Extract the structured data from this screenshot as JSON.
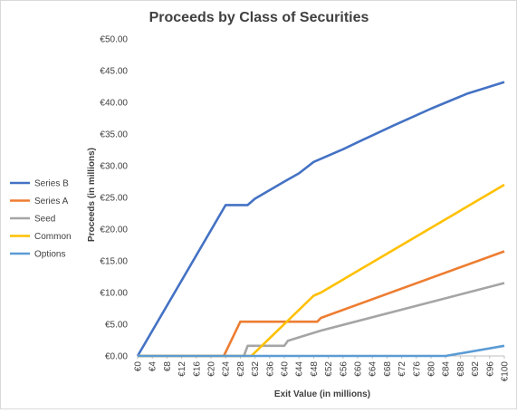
{
  "chart_data": {
    "type": "line",
    "title": "Proceeds by Class of Securities",
    "xlabel": "Exit Value (in millions)",
    "ylabel": "Proceeds (in millions)",
    "xlim": [
      0,
      100
    ],
    "ylim": [
      0,
      50
    ],
    "x_ticks": [
      0,
      4,
      8,
      12,
      16,
      20,
      24,
      28,
      32,
      36,
      40,
      44,
      48,
      52,
      56,
      60,
      64,
      68,
      72,
      76,
      80,
      84,
      88,
      92,
      96,
      100
    ],
    "x_tick_labels": [
      "€0",
      "€4",
      "€8",
      "€12",
      "€16",
      "€20",
      "€24",
      "€28",
      "€32",
      "€36",
      "€40",
      "€44",
      "€48",
      "€52",
      "€56",
      "€60",
      "€64",
      "€68",
      "€72",
      "€76",
      "€80",
      "€84",
      "€88",
      "€92",
      "€96",
      "€100"
    ],
    "y_ticks": [
      0,
      5,
      10,
      15,
      20,
      25,
      30,
      35,
      40,
      45,
      50
    ],
    "y_tick_labels": [
      "€0.00",
      "€5.00",
      "€10.00",
      "€15.00",
      "€20.00",
      "€25.00",
      "€30.00",
      "€35.00",
      "€40.00",
      "€45.00",
      "€50.00"
    ],
    "grid": false,
    "legend_position": "left",
    "series": [
      {
        "name": "Series B",
        "color": "#4472C4",
        "x": [
          0,
          24,
          30,
          32,
          40,
          44,
          48,
          52,
          56,
          60,
          70,
          80,
          90,
          100
        ],
        "values": [
          0,
          23.8,
          23.8,
          24.8,
          27.5,
          28.8,
          30.6,
          31.6,
          32.6,
          33.7,
          36.4,
          39.0,
          41.4,
          43.2
        ]
      },
      {
        "name": "Series A",
        "color": "#ED7D31",
        "x": [
          0,
          23.5,
          28,
          49,
          50,
          100
        ],
        "values": [
          0,
          0,
          5.4,
          5.4,
          6.0,
          16.5
        ]
      },
      {
        "name": "Seed",
        "color": "#A5A5A5",
        "x": [
          0,
          29,
          30,
          40,
          41,
          50,
          100
        ],
        "values": [
          0,
          0,
          1.6,
          1.6,
          2.4,
          4.0,
          11.5
        ]
      },
      {
        "name": "Common",
        "color": "#FFC000",
        "x": [
          0,
          31,
          48,
          50,
          100
        ],
        "values": [
          0,
          0,
          9.5,
          10.0,
          27.0
        ]
      },
      {
        "name": "Options",
        "color": "#5B9BD5",
        "x": [
          0,
          84,
          100
        ],
        "values": [
          0,
          0,
          1.6
        ]
      }
    ]
  }
}
